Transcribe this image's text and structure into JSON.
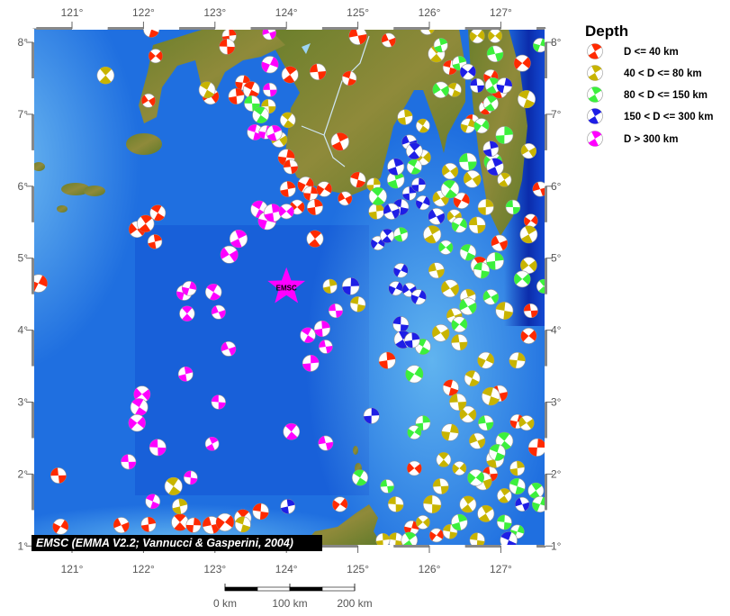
{
  "map": {
    "lon_ticks": [
      "121°",
      "122°",
      "123°",
      "124°",
      "125°",
      "126°",
      "127°"
    ],
    "lat_ticks": [
      "8°",
      "7°",
      "6°",
      "5°",
      "4°",
      "3°",
      "2°",
      "1°"
    ],
    "lon_values": [
      121,
      122,
      123,
      124,
      125,
      126,
      127
    ],
    "lat_values": [
      8,
      7,
      6,
      5,
      4,
      3,
      2,
      1
    ],
    "extent": {
      "lon": [
        120.46,
        127.63
      ],
      "lat": [
        0.99,
        8.18
      ]
    },
    "star_label": "EMSC",
    "star_position": {
      "lon": 124.0,
      "lat": 4.6
    },
    "caption": "EMSC (EMMA V2.2; Vannucci & Gasperini, 2004)",
    "scale": {
      "labels": [
        "0 km",
        "100 km",
        "200 km"
      ]
    }
  },
  "legend": {
    "title": "Depth",
    "items": [
      {
        "key": "d40",
        "label": "D <= 40 km",
        "color": "#ff2a00"
      },
      {
        "key": "d80",
        "label": "40 < D <= 80 km",
        "color": "#c8b400"
      },
      {
        "key": "d150",
        "label": "80 < D <= 150 km",
        "color": "#3cf03c"
      },
      {
        "key": "d300",
        "label": "150 < D <= 300 km",
        "color": "#1e1ee6"
      },
      {
        "key": "dgt300",
        "label": "D > 300 km",
        "color": "#ff00ff"
      }
    ]
  },
  "events": {
    "d40": [
      [
        122.11,
        8.18
      ],
      [
        123.2,
        8.09
      ],
      [
        123.17,
        7.94
      ],
      [
        122.17,
        7.81
      ],
      [
        122.94,
        7.25
      ],
      [
        123.39,
        7.44
      ],
      [
        123.51,
        7.34
      ],
      [
        123.3,
        7.25
      ],
      [
        124.05,
        7.55
      ],
      [
        124.44,
        7.59
      ],
      [
        124.88,
        7.5
      ],
      [
        125.0,
        8.09
      ],
      [
        125.43,
        8.03
      ],
      [
        124.75,
        6.62
      ],
      [
        125.0,
        6.09
      ],
      [
        124.0,
        6.4
      ],
      [
        124.06,
        6.27
      ],
      [
        124.02,
        5.96
      ],
      [
        124.27,
        6.02
      ],
      [
        124.34,
        5.9
      ],
      [
        124.53,
        5.96
      ],
      [
        124.82,
        5.83
      ],
      [
        124.15,
        5.71
      ],
      [
        124.4,
        5.71
      ],
      [
        121.91,
        5.4
      ],
      [
        122.03,
        5.48
      ],
      [
        122.16,
        5.23
      ],
      [
        122.2,
        5.63
      ],
      [
        122.07,
        7.19
      ],
      [
        124.4,
        5.27
      ],
      [
        120.53,
        4.65
      ],
      [
        120.81,
        1.98
      ],
      [
        120.84,
        1.27
      ],
      [
        121.69,
        1.29
      ],
      [
        122.07,
        1.3
      ],
      [
        122.51,
        1.33
      ],
      [
        122.7,
        1.29
      ],
      [
        122.95,
        1.29
      ],
      [
        123.14,
        1.33
      ],
      [
        123.39,
        1.39
      ],
      [
        123.64,
        1.48
      ],
      [
        124.75,
        1.58
      ],
      [
        125.79,
        2.08
      ],
      [
        125.41,
        3.58
      ],
      [
        127.55,
        5.96
      ],
      [
        127.42,
        5.52
      ],
      [
        126.98,
        5.21
      ],
      [
        127.42,
        4.27
      ],
      [
        127.39,
        3.92
      ],
      [
        126.98,
        3.12
      ],
      [
        127.23,
        2.73
      ],
      [
        127.51,
        2.37
      ],
      [
        126.79,
        7.09
      ],
      [
        126.98,
        7.34
      ],
      [
        127.3,
        7.71
      ],
      [
        126.86,
        7.52
      ],
      [
        126.29,
        7.65
      ],
      [
        126.6,
        6.9
      ],
      [
        126.45,
        5.8
      ],
      [
        126.7,
        4.9
      ],
      [
        126.3,
        3.2
      ],
      [
        126.85,
        2.0
      ],
      [
        126.1,
        1.15
      ],
      [
        125.75,
        1.25
      ]
    ],
    "d80": [
      [
        121.47,
        7.54
      ],
      [
        123.75,
        7.11
      ],
      [
        122.89,
        7.34
      ],
      [
        124.02,
        6.92
      ],
      [
        123.9,
        6.65
      ],
      [
        125.22,
        6.02
      ],
      [
        125.26,
        5.65
      ],
      [
        125.97,
        8.21
      ],
      [
        126.1,
        7.84
      ],
      [
        126.67,
        8.09
      ],
      [
        126.92,
        8.09
      ],
      [
        126.35,
        7.34
      ],
      [
        126.54,
        6.84
      ],
      [
        125.91,
        6.84
      ],
      [
        125.91,
        6.4
      ],
      [
        126.29,
        6.21
      ],
      [
        126.16,
        5.83
      ],
      [
        126.35,
        5.58
      ],
      [
        126.67,
        5.46
      ],
      [
        126.04,
        5.33
      ],
      [
        126.1,
        4.83
      ],
      [
        126.29,
        4.58
      ],
      [
        126.54,
        4.46
      ],
      [
        126.16,
        3.96
      ],
      [
        126.42,
        3.83
      ],
      [
        126.79,
        3.58
      ],
      [
        126.6,
        3.33
      ],
      [
        126.86,
        3.08
      ],
      [
        126.54,
        2.83
      ],
      [
        126.29,
        2.58
      ],
      [
        126.67,
        2.46
      ],
      [
        126.92,
        2.21
      ],
      [
        126.42,
        2.08
      ],
      [
        126.16,
        1.83
      ],
      [
        126.54,
        1.58
      ],
      [
        126.79,
        1.45
      ],
      [
        126.29,
        1.2
      ],
      [
        126.67,
        1.08
      ],
      [
        126.04,
        1.58
      ],
      [
        125.91,
        1.33
      ],
      [
        127.05,
        1.7
      ],
      [
        127.23,
        2.08
      ],
      [
        127.36,
        2.71
      ],
      [
        127.39,
        4.9
      ],
      [
        127.39,
        5.33
      ],
      [
        127.39,
        6.49
      ],
      [
        127.36,
        7.21
      ],
      [
        127.05,
        6.09
      ],
      [
        126.79,
        5.71
      ],
      [
        125.53,
        1.58
      ],
      [
        125.53,
        1.08
      ],
      [
        125.35,
        1.08
      ],
      [
        123.39,
        1.3
      ],
      [
        122.42,
        1.83
      ],
      [
        122.51,
        1.55
      ],
      [
        125.0,
        4.36
      ],
      [
        124.61,
        4.61
      ],
      [
        127.05,
        4.27
      ],
      [
        127.23,
        3.58
      ],
      [
        125.66,
        6.96
      ],
      [
        126.4,
        3.0
      ],
      [
        126.2,
        2.2
      ],
      [
        126.75,
        1.9
      ],
      [
        126.35,
        4.2
      ],
      [
        126.6,
        6.1
      ]
    ],
    "d150": [
      [
        126.16,
        7.96
      ],
      [
        126.42,
        7.71
      ],
      [
        126.92,
        7.84
      ],
      [
        126.73,
        6.84
      ],
      [
        126.86,
        7.15
      ],
      [
        125.28,
        5.86
      ],
      [
        125.53,
        6.09
      ],
      [
        125.79,
        6.27
      ],
      [
        125.6,
        5.33
      ],
      [
        126.29,
        5.96
      ],
      [
        126.42,
        5.46
      ],
      [
        126.54,
        5.08
      ],
      [
        126.23,
        5.15
      ],
      [
        126.92,
        4.96
      ],
      [
        126.73,
        4.83
      ],
      [
        127.3,
        4.71
      ],
      [
        127.6,
        4.61
      ],
      [
        126.86,
        4.46
      ],
      [
        126.54,
        4.33
      ],
      [
        126.42,
        4.08
      ],
      [
        125.91,
        3.77
      ],
      [
        125.79,
        3.39
      ],
      [
        125.91,
        2.71
      ],
      [
        125.79,
        2.58
      ],
      [
        126.79,
        2.71
      ],
      [
        127.05,
        2.46
      ],
      [
        127.23,
        1.83
      ],
      [
        127.49,
        1.77
      ],
      [
        127.55,
        1.58
      ],
      [
        127.05,
        1.33
      ],
      [
        126.42,
        1.33
      ],
      [
        125.72,
        1.08
      ],
      [
        125.03,
        1.95
      ],
      [
        125.41,
        1.83
      ],
      [
        123.52,
        7.15
      ],
      [
        123.64,
        6.99
      ],
      [
        127.55,
        7.96
      ],
      [
        126.89,
        7.4
      ],
      [
        126.89,
        6.34
      ],
      [
        127.17,
        5.71
      ],
      [
        126.54,
        6.34
      ],
      [
        127.05,
        6.71
      ],
      [
        126.16,
        7.34
      ],
      [
        127.23,
        1.2
      ],
      [
        126.95,
        2.3
      ],
      [
        126.65,
        1.95
      ]
    ],
    "d300": [
      [
        125.72,
        6.61
      ],
      [
        125.79,
        6.49
      ],
      [
        125.53,
        6.27
      ],
      [
        125.72,
        5.9
      ],
      [
        125.91,
        5.77
      ],
      [
        125.85,
        6.02
      ],
      [
        125.6,
        5.71
      ],
      [
        125.47,
        5.65
      ],
      [
        125.28,
        5.21
      ],
      [
        125.41,
        5.31
      ],
      [
        125.6,
        4.83
      ],
      [
        125.53,
        4.58
      ],
      [
        125.72,
        4.56
      ],
      [
        125.85,
        4.46
      ],
      [
        125.6,
        4.08
      ],
      [
        125.63,
        3.87
      ],
      [
        125.76,
        3.86
      ],
      [
        125.19,
        2.81
      ],
      [
        124.9,
        4.61
      ],
      [
        126.1,
        5.58
      ],
      [
        126.54,
        7.59
      ],
      [
        126.67,
        7.4
      ],
      [
        126.86,
        6.52
      ],
      [
        126.92,
        6.27
      ],
      [
        124.02,
        1.55
      ],
      [
        127.3,
        1.58
      ],
      [
        127.11,
        1.08
      ],
      [
        127.05,
        7.4
      ]
    ],
    "dgt300": [
      [
        123.76,
        8.13
      ],
      [
        123.77,
        7.69
      ],
      [
        123.77,
        7.34
      ],
      [
        123.56,
        6.75
      ],
      [
        123.71,
        6.75
      ],
      [
        123.83,
        6.74
      ],
      [
        123.62,
        5.68
      ],
      [
        123.73,
        5.52
      ],
      [
        123.81,
        5.63
      ],
      [
        124.0,
        5.65
      ],
      [
        123.33,
        5.27
      ],
      [
        123.2,
        5.05
      ],
      [
        122.57,
        4.52
      ],
      [
        122.64,
        4.58
      ],
      [
        122.98,
        4.53
      ],
      [
        122.61,
        4.23
      ],
      [
        123.05,
        4.25
      ],
      [
        124.3,
        3.93
      ],
      [
        124.5,
        4.02
      ],
      [
        124.55,
        3.77
      ],
      [
        124.34,
        3.54
      ],
      [
        123.19,
        3.74
      ],
      [
        122.59,
        3.39
      ],
      [
        121.98,
        3.11
      ],
      [
        121.94,
        2.93
      ],
      [
        123.05,
        3.0
      ],
      [
        121.91,
        2.71
      ],
      [
        122.2,
        2.37
      ],
      [
        122.96,
        2.42
      ],
      [
        121.79,
        2.17
      ],
      [
        122.66,
        1.95
      ],
      [
        122.13,
        1.62
      ],
      [
        124.07,
        2.59
      ],
      [
        124.55,
        2.43
      ],
      [
        124.69,
        4.27
      ]
    ]
  },
  "colors": {
    "ocean": "#1f7ae8",
    "ocean_shallow": "#6cc0f2",
    "trench": "#0a28a8",
    "land_low": "#5f7a2a",
    "land_high": "#c7ae5a"
  }
}
